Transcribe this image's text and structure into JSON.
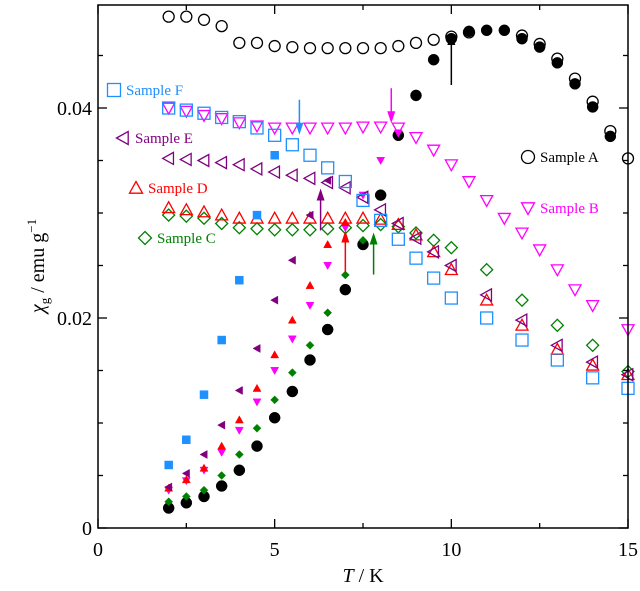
{
  "chart_data": {
    "type": "scatter",
    "xlabel": "T / K",
    "ylabel": "χg / emu g−1",
    "xlim": [
      0,
      15
    ],
    "ylim": [
      0,
      0.05
    ],
    "xticks": [
      "0",
      "5",
      "10",
      "15"
    ],
    "yticks": [
      "0",
      "0.02",
      "0.04"
    ],
    "grid": false,
    "series": [
      {
        "name": "Sample A",
        "color": "#000000",
        "fc": [
          [
            2,
            0.0487
          ],
          [
            2.5,
            0.0487
          ],
          [
            3,
            0.0484
          ],
          [
            3.5,
            0.0478
          ],
          [
            4,
            0.0462
          ],
          [
            4.5,
            0.0462
          ],
          [
            5,
            0.0459
          ],
          [
            5.5,
            0.0458
          ],
          [
            6,
            0.0457
          ],
          [
            6.5,
            0.0457
          ],
          [
            7,
            0.0457
          ],
          [
            7.5,
            0.0457
          ],
          [
            8,
            0.0457
          ],
          [
            8.5,
            0.0459
          ],
          [
            9,
            0.0462
          ],
          [
            9.5,
            0.0465
          ],
          [
            10,
            0.0468
          ],
          [
            10.5,
            0.0472
          ],
          [
            12,
            0.0469
          ],
          [
            12.5,
            0.0461
          ],
          [
            13,
            0.0447
          ],
          [
            13.5,
            0.0428
          ],
          [
            14,
            0.0406
          ],
          [
            14.5,
            0.0378
          ],
          [
            15,
            0.0352
          ]
        ],
        "zfc": [
          [
            2,
            0.0019
          ],
          [
            2.5,
            0.0024
          ],
          [
            3,
            0.003
          ],
          [
            3.5,
            0.004
          ],
          [
            4,
            0.0055
          ],
          [
            4.5,
            0.0078
          ],
          [
            5,
            0.0105
          ],
          [
            5.5,
            0.013
          ],
          [
            6,
            0.016
          ],
          [
            6.5,
            0.0189
          ],
          [
            7,
            0.0227
          ],
          [
            7.5,
            0.027
          ],
          [
            8,
            0.0317
          ],
          [
            8.5,
            0.0374
          ],
          [
            9,
            0.0412
          ],
          [
            9.5,
            0.0446
          ],
          [
            10,
            0.0466
          ],
          [
            10.5,
            0.0473
          ],
          [
            11,
            0.0474
          ],
          [
            11.5,
            0.0474
          ],
          [
            12,
            0.0466
          ],
          [
            12.5,
            0.0458
          ],
          [
            13,
            0.0443
          ],
          [
            13.5,
            0.0423
          ],
          [
            14,
            0.0401
          ],
          [
            14.5,
            0.0373
          ]
        ],
        "arrow_T": 10,
        "arrow_dir": "up"
      },
      {
        "name": "Sample B",
        "color": "#ff00ff",
        "fc": [
          [
            2,
            0.04
          ],
          [
            2.5,
            0.0397
          ],
          [
            3,
            0.0393
          ],
          [
            3.5,
            0.039
          ],
          [
            4,
            0.0386
          ],
          [
            4.5,
            0.0383
          ],
          [
            5,
            0.0381
          ],
          [
            5.5,
            0.0381
          ],
          [
            6,
            0.0381
          ],
          [
            6.5,
            0.0381
          ],
          [
            7,
            0.0381
          ],
          [
            7.5,
            0.0382
          ],
          [
            8,
            0.0382
          ],
          [
            8.5,
            0.0381
          ],
          [
            9,
            0.0372
          ],
          [
            9.5,
            0.036
          ],
          [
            10,
            0.0346
          ],
          [
            10.5,
            0.033
          ],
          [
            11,
            0.0312
          ],
          [
            11.5,
            0.0295
          ],
          [
            12,
            0.0281
          ],
          [
            12.5,
            0.0265
          ],
          [
            13,
            0.0246
          ],
          [
            13.5,
            0.0227
          ],
          [
            14,
            0.0212
          ],
          [
            15,
            0.0189
          ]
        ],
        "zfc": [
          [
            2,
            0.0036
          ],
          [
            2.5,
            0.0045
          ],
          [
            3,
            0.0055
          ],
          [
            3.5,
            0.0072
          ],
          [
            4,
            0.0093
          ],
          [
            4.5,
            0.012
          ],
          [
            5,
            0.015
          ],
          [
            5.5,
            0.018
          ],
          [
            6,
            0.0212
          ],
          [
            6.5,
            0.025
          ],
          [
            7,
            0.0286
          ],
          [
            7.5,
            0.0317
          ],
          [
            8,
            0.035
          ],
          [
            8.5,
            0.0376
          ]
        ],
        "arrow_T": 8.3,
        "arrow_dir": "down"
      },
      {
        "name": "Sample C",
        "color": "#008000",
        "fc": [
          [
            2,
            0.0298
          ],
          [
            2.5,
            0.0297
          ],
          [
            3,
            0.0295
          ],
          [
            3.5,
            0.029
          ],
          [
            4,
            0.0286
          ],
          [
            4.5,
            0.0285
          ],
          [
            5,
            0.0284
          ],
          [
            5.5,
            0.0284
          ],
          [
            6,
            0.0284
          ],
          [
            6.5,
            0.0285
          ],
          [
            7,
            0.0286
          ],
          [
            7.5,
            0.0288
          ],
          [
            8,
            0.0289
          ],
          [
            8.5,
            0.0287
          ],
          [
            9,
            0.0281
          ],
          [
            9.5,
            0.0274
          ],
          [
            10,
            0.0267
          ],
          [
            11,
            0.0246
          ],
          [
            12,
            0.0217
          ],
          [
            13,
            0.0193
          ],
          [
            14,
            0.0174
          ],
          [
            15,
            0.0149
          ]
        ],
        "zfc": [
          [
            2,
            0.0025
          ],
          [
            2.5,
            0.003
          ],
          [
            3,
            0.0036
          ],
          [
            3.5,
            0.005
          ],
          [
            4,
            0.007
          ],
          [
            4.5,
            0.0095
          ],
          [
            5,
            0.0122
          ],
          [
            5.5,
            0.0148
          ],
          [
            6,
            0.0174
          ],
          [
            6.5,
            0.0205
          ],
          [
            7,
            0.0241
          ],
          [
            7.5,
            0.0274
          ]
        ],
        "arrow_T": 7.8,
        "arrow_dir": "up"
      },
      {
        "name": "Sample D",
        "color": "#ff0000",
        "fc": [
          [
            2,
            0.0305
          ],
          [
            2.5,
            0.0303
          ],
          [
            3,
            0.0301
          ],
          [
            3.5,
            0.0298
          ],
          [
            4,
            0.0295
          ],
          [
            4.5,
            0.0295
          ],
          [
            5,
            0.0295
          ],
          [
            5.5,
            0.0295
          ],
          [
            6,
            0.0295
          ],
          [
            6.5,
            0.0295
          ],
          [
            7,
            0.0295
          ],
          [
            7.5,
            0.0295
          ],
          [
            8,
            0.0294
          ],
          [
            8.5,
            0.0289
          ],
          [
            9,
            0.0279
          ],
          [
            9.5,
            0.0263
          ],
          [
            10,
            0.0246
          ],
          [
            11,
            0.0217
          ],
          [
            12,
            0.0193
          ],
          [
            13,
            0.017
          ],
          [
            14,
            0.0155
          ],
          [
            15,
            0.0146
          ]
        ],
        "zfc": [
          [
            2,
            0.0038
          ],
          [
            2.5,
            0.0046
          ],
          [
            3,
            0.0057
          ],
          [
            3.5,
            0.0078
          ],
          [
            4,
            0.0103
          ],
          [
            4.5,
            0.0133
          ],
          [
            5,
            0.0165
          ],
          [
            5.5,
            0.0198
          ],
          [
            6,
            0.0231
          ],
          [
            6.5,
            0.027
          ],
          [
            7,
            0.0291
          ]
        ],
        "arrow_T": 7.0,
        "arrow_dir": "up"
      },
      {
        "name": "Sample E",
        "color": "#800080",
        "fc": [
          [
            2,
            0.0352
          ],
          [
            2.5,
            0.0351
          ],
          [
            3,
            0.035
          ],
          [
            3.5,
            0.0348
          ],
          [
            4,
            0.0346
          ],
          [
            4.5,
            0.0342
          ],
          [
            5,
            0.0339
          ],
          [
            5.5,
            0.0336
          ],
          [
            6,
            0.0333
          ],
          [
            6.5,
            0.0329
          ],
          [
            7,
            0.0324
          ],
          [
            7.5,
            0.0315
          ],
          [
            8,
            0.0303
          ],
          [
            8.5,
            0.029
          ],
          [
            9,
            0.0276
          ],
          [
            9.5,
            0.0263
          ],
          [
            10,
            0.025
          ],
          [
            11,
            0.0222
          ],
          [
            12,
            0.0198
          ],
          [
            13,
            0.0174
          ],
          [
            14,
            0.0158
          ],
          [
            15,
            0.0146
          ]
        ],
        "zfc": [
          [
            2,
            0.0039
          ],
          [
            2.5,
            0.0052
          ],
          [
            3,
            0.007
          ],
          [
            3.5,
            0.0098
          ],
          [
            4,
            0.0131
          ],
          [
            4.5,
            0.0171
          ],
          [
            5,
            0.0217
          ],
          [
            5.5,
            0.0255
          ],
          [
            6,
            0.0298
          ],
          [
            6.5,
            0.0331
          ]
        ],
        "arrow_T": 6.3,
        "arrow_dir": "up"
      },
      {
        "name": "Sample F",
        "color": "#1e90ff",
        "fc": [
          [
            2,
            0.04
          ],
          [
            2.5,
            0.0398
          ],
          [
            3,
            0.0395
          ],
          [
            3.5,
            0.0391
          ],
          [
            4,
            0.0387
          ],
          [
            4.5,
            0.0381
          ],
          [
            5,
            0.0374
          ],
          [
            5.5,
            0.0365
          ],
          [
            6,
            0.0355
          ],
          [
            6.5,
            0.0343
          ],
          [
            7,
            0.033
          ],
          [
            7.5,
            0.0312
          ],
          [
            8,
            0.0293
          ],
          [
            8.5,
            0.0275
          ],
          [
            9,
            0.0257
          ],
          [
            9.5,
            0.0238
          ],
          [
            10,
            0.0219
          ],
          [
            11,
            0.02
          ],
          [
            12,
            0.0179
          ],
          [
            13,
            0.016
          ],
          [
            14,
            0.0143
          ],
          [
            15,
            0.0133
          ]
        ],
        "zfc": [
          [
            2,
            0.006
          ],
          [
            2.5,
            0.0084
          ],
          [
            3,
            0.0127
          ],
          [
            3.5,
            0.0179
          ],
          [
            4,
            0.0236
          ],
          [
            4.5,
            0.0298
          ],
          [
            5,
            0.0355
          ]
        ],
        "arrow_T": 5.7,
        "arrow_dir": "down"
      }
    ]
  }
}
